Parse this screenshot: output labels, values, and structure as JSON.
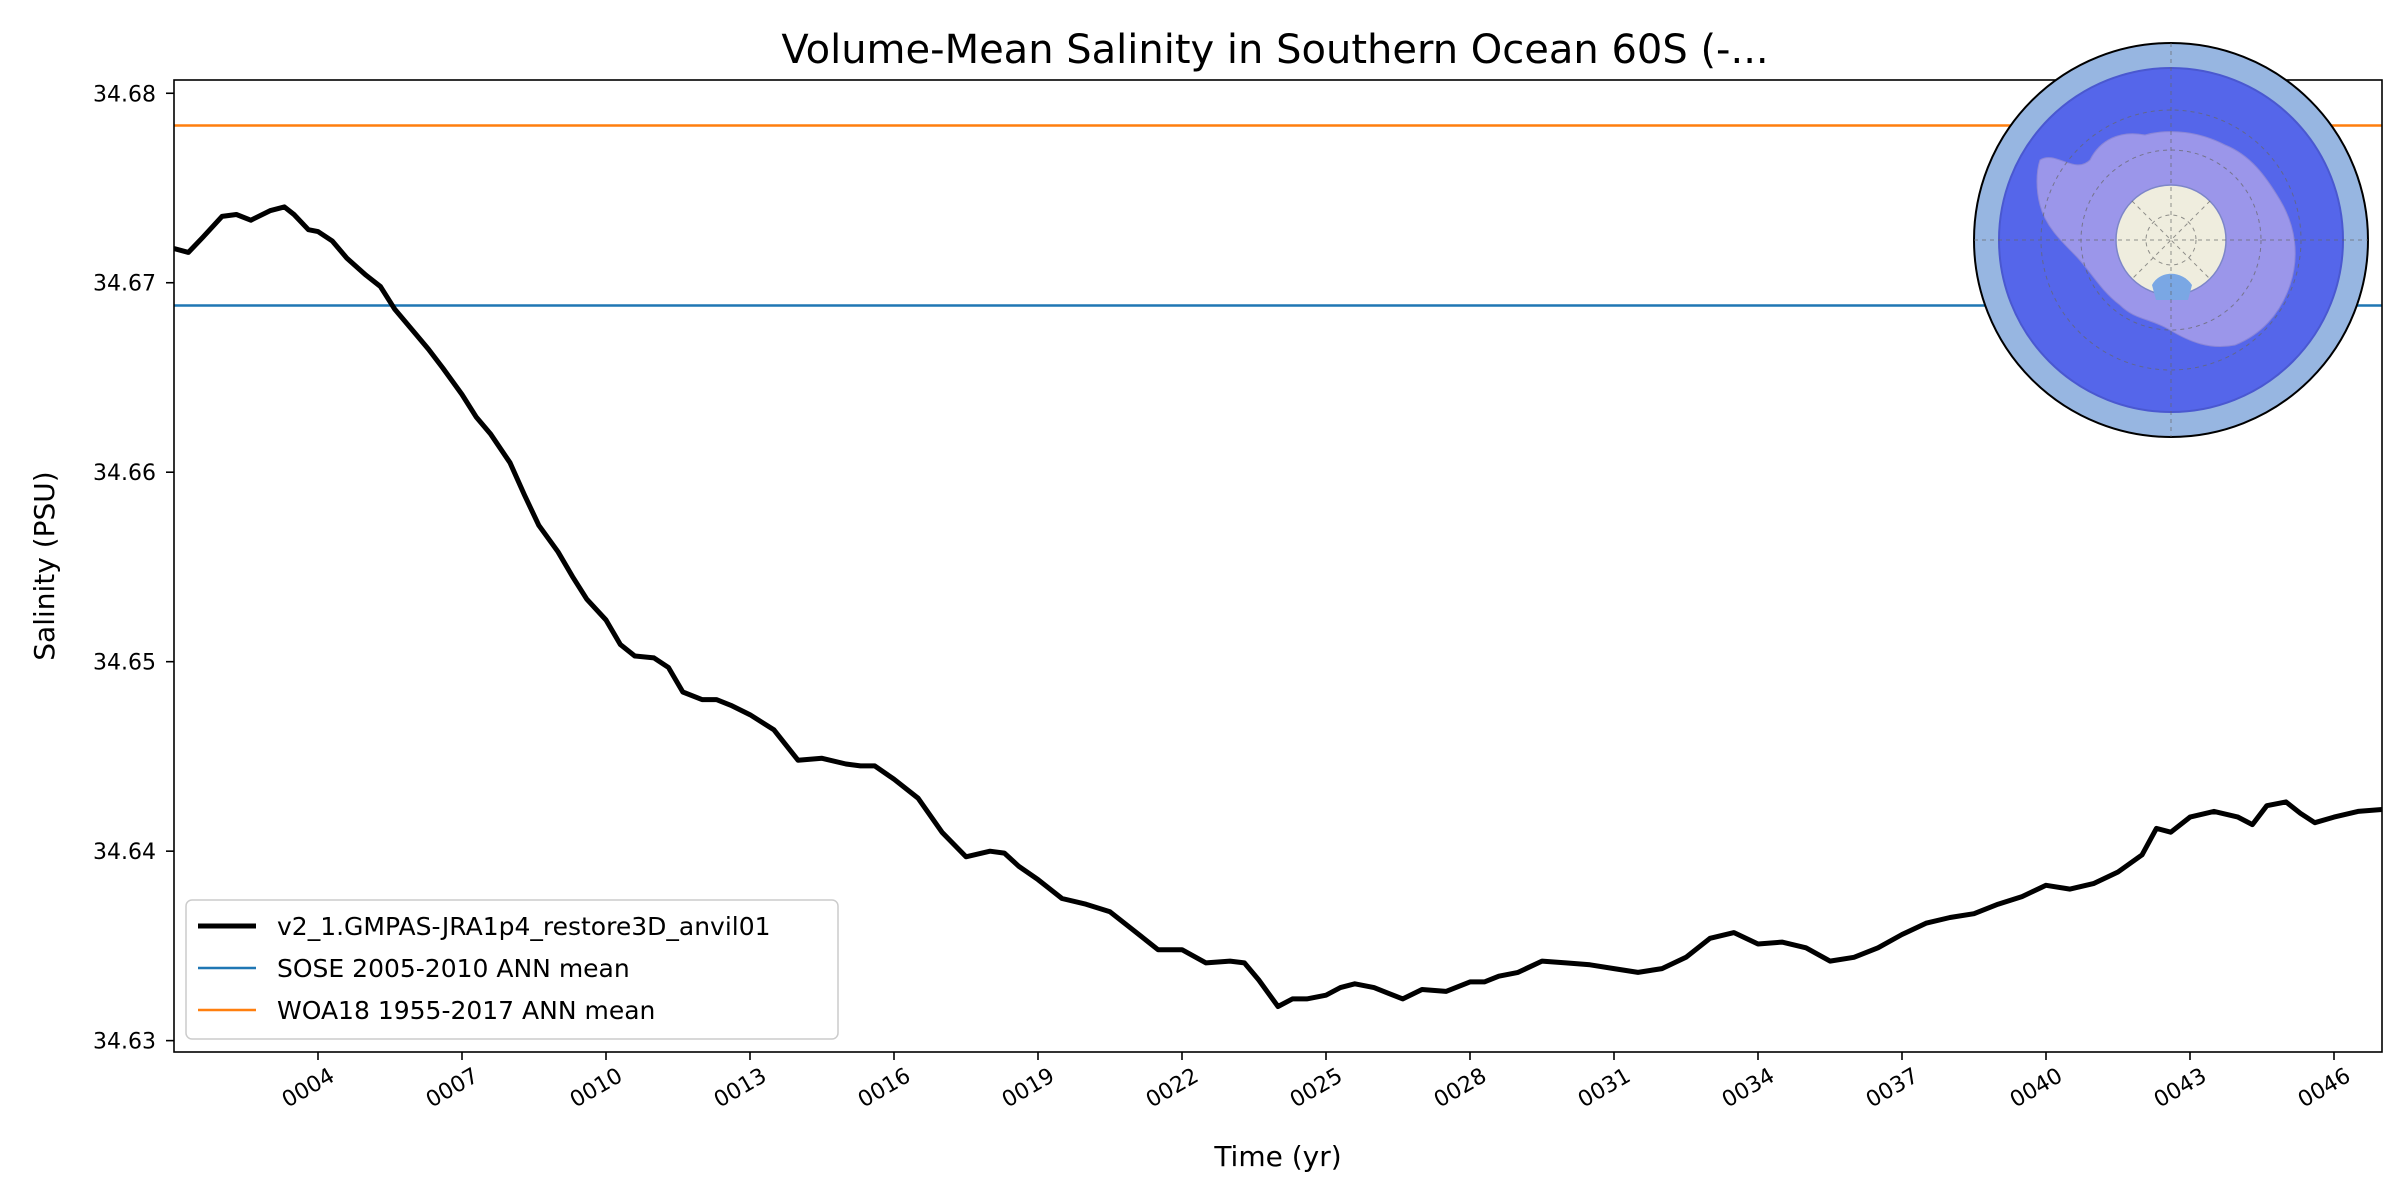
{
  "chart_data": {
    "type": "line",
    "title": "Volume-Mean Salinity in Southern Ocean 60S (-...",
    "xlabel": "Time (yr)",
    "ylabel": "Salinity (PSU)",
    "xlim": [
      1.0,
      47.0
    ],
    "ylim": [
      34.6294,
      34.6807
    ],
    "x_tick_values": [
      4,
      7,
      10,
      13,
      16,
      19,
      22,
      25,
      28,
      31,
      34,
      37,
      40,
      43,
      46
    ],
    "x_tick_labels": [
      "0004",
      "0007",
      "0010",
      "0013",
      "0016",
      "0019",
      "0022",
      "0025",
      "0028",
      "0031",
      "0034",
      "0037",
      "0040",
      "0043",
      "0046"
    ],
    "y_tick_values": [
      34.63,
      34.64,
      34.65,
      34.66,
      34.67,
      34.68
    ],
    "y_tick_labels": [
      "34.63",
      "34.64",
      "34.65",
      "34.66",
      "34.67",
      "34.68"
    ],
    "grid": false,
    "legend_position": "lower-left",
    "series": [
      {
        "name": "v2_1.GMPAS-JRA1p4_restore3D_anvil01",
        "color": "#000000",
        "x": [
          1.0,
          1.3,
          1.6,
          2.0,
          2.3,
          2.6,
          3.0,
          3.3,
          3.5,
          3.8,
          4.0,
          4.3,
          4.6,
          5.0,
          5.3,
          5.6,
          6.0,
          6.3,
          6.6,
          7.0,
          7.3,
          7.6,
          8.0,
          8.3,
          8.6,
          9.0,
          9.3,
          9.6,
          10.0,
          10.3,
          10.6,
          11.0,
          11.3,
          11.6,
          12.0,
          12.3,
          12.6,
          13.0,
          13.5,
          14.0,
          14.5,
          15.0,
          15.3,
          15.6,
          16.0,
          16.5,
          17.0,
          17.5,
          18.0,
          18.3,
          18.6,
          19.0,
          19.5,
          20.0,
          20.5,
          21.0,
          21.5,
          22.0,
          22.5,
          23.0,
          23.3,
          23.6,
          24.0,
          24.3,
          24.6,
          25.0,
          25.3,
          25.6,
          26.0,
          26.3,
          26.6,
          27.0,
          27.5,
          28.0,
          28.3,
          28.6,
          29.0,
          29.5,
          30.0,
          30.5,
          31.0,
          31.5,
          32.0,
          32.5,
          33.0,
          33.5,
          34.0,
          34.5,
          35.0,
          35.5,
          36.0,
          36.5,
          37.0,
          37.5,
          38.0,
          38.5,
          39.0,
          39.5,
          40.0,
          40.5,
          41.0,
          41.5,
          42.0,
          42.3,
          42.6,
          43.0,
          43.5,
          44.0,
          44.3,
          44.6,
          45.0,
          45.3,
          45.6,
          46.0,
          46.5,
          47.0
        ],
        "y": [
          34.6718,
          34.6716,
          34.6724,
          34.6735,
          34.6736,
          34.6733,
          34.6738,
          34.674,
          34.6736,
          34.6728,
          34.6727,
          34.6722,
          34.6713,
          34.6704,
          34.6698,
          34.6686,
          34.6674,
          34.6665,
          34.6655,
          34.6641,
          34.6629,
          34.662,
          34.6605,
          34.6588,
          34.6572,
          34.6558,
          34.6545,
          34.6533,
          34.6522,
          34.6509,
          34.6503,
          34.6502,
          34.6497,
          34.6484,
          34.648,
          34.648,
          34.6477,
          34.6472,
          34.6464,
          34.6448,
          34.6449,
          34.6446,
          34.6445,
          34.6445,
          34.6438,
          34.6428,
          34.641,
          34.6397,
          34.64,
          34.6399,
          34.6392,
          34.6385,
          34.6375,
          34.6372,
          34.6368,
          34.6358,
          34.6348,
          34.6348,
          34.6341,
          34.6342,
          34.6341,
          34.6332,
          34.6318,
          34.6322,
          34.6322,
          34.6324,
          34.6328,
          34.633,
          34.6328,
          34.6325,
          34.6322,
          34.6327,
          34.6326,
          34.6331,
          34.6331,
          34.6334,
          34.6336,
          34.6342,
          34.6341,
          34.634,
          34.6338,
          34.6336,
          34.6338,
          34.6344,
          34.6354,
          34.6357,
          34.6351,
          34.6352,
          34.6349,
          34.6342,
          34.6344,
          34.6349,
          34.6356,
          34.6362,
          34.6365,
          34.6367,
          34.6372,
          34.6376,
          34.6382,
          34.638,
          34.6383,
          34.6389,
          34.6398,
          34.6412,
          34.641,
          34.6418,
          34.6421,
          34.6418,
          34.6414,
          34.6424,
          34.6426,
          34.642,
          34.6415,
          34.6418,
          34.6421,
          34.6422
        ]
      },
      {
        "name": "SOSE 2005-2010 ANN mean",
        "color": "#1f77b4",
        "x": [
          1.0,
          47.0
        ],
        "y": [
          34.6688,
          34.6688
        ]
      },
      {
        "name": "WOA18 1955-2017 ANN mean",
        "color": "#ff7f0e",
        "x": [
          1.0,
          47.0
        ],
        "y": [
          34.6783,
          34.6783
        ]
      }
    ]
  },
  "inset_map": {
    "icon": "antarctic-region-map-icon",
    "colors": {
      "outer_ocean": "#97b6e1",
      "region": "#5566ea",
      "continent": "#9b96ea",
      "pole_disk": "#efedde",
      "border": "#000000"
    }
  }
}
